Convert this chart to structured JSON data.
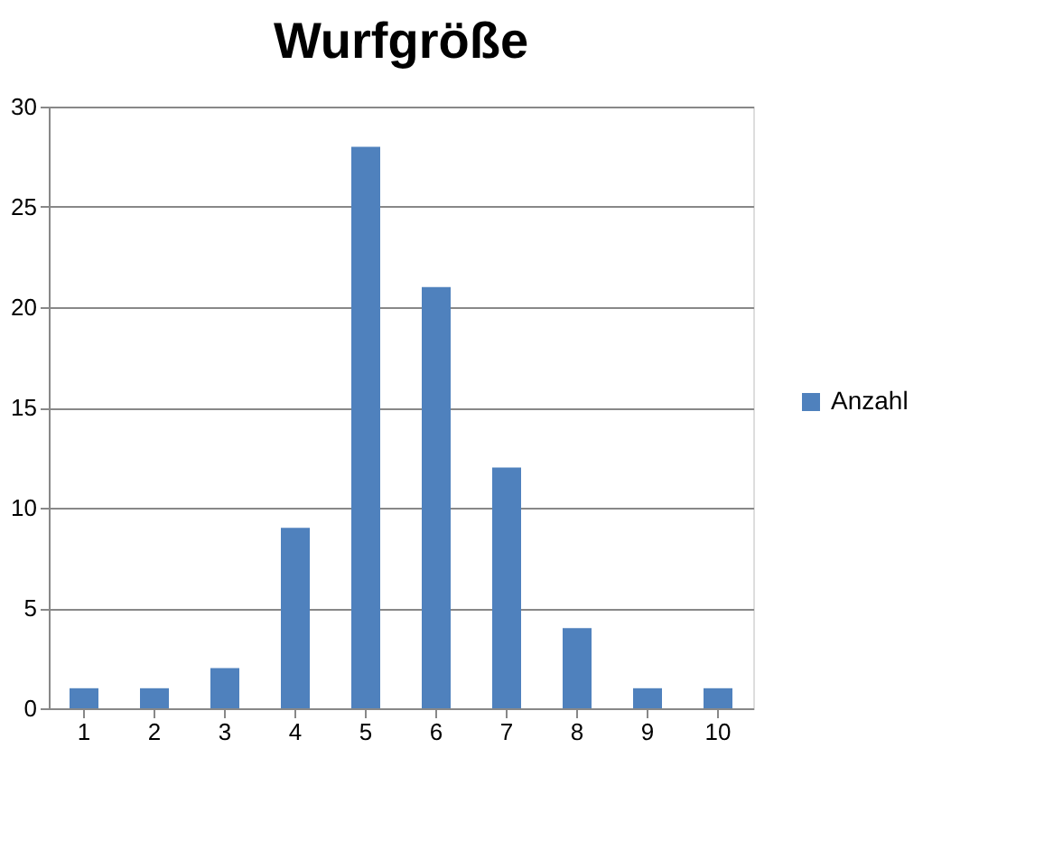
{
  "chart_data": {
    "type": "bar",
    "title": "Wurfgröße",
    "categories": [
      "1",
      "2",
      "3",
      "4",
      "5",
      "6",
      "7",
      "8",
      "9",
      "10"
    ],
    "series": [
      {
        "name": "Anzahl",
        "color": "#4f81bd",
        "values": [
          1,
          1,
          2,
          9,
          28,
          21,
          12,
          4,
          1,
          1
        ]
      }
    ],
    "ylim": [
      0,
      30
    ],
    "yticks": [
      0,
      5,
      10,
      15,
      20,
      25,
      30
    ],
    "grid": "y",
    "legend": "right"
  }
}
